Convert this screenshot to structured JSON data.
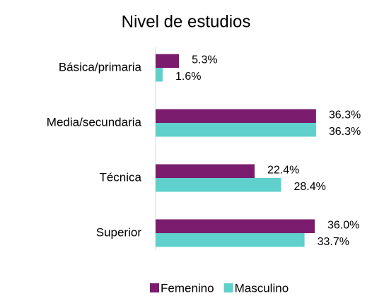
{
  "chart_data": {
    "type": "bar",
    "orientation": "horizontal",
    "title": "Nivel de estudios",
    "categories": [
      "Básica/primaria",
      "Media/secundaria",
      "Técnica",
      "Superior"
    ],
    "series": [
      {
        "name": "Femenino",
        "color": "#7b1c6e",
        "values": [
          5.3,
          36.3,
          22.4,
          36.0
        ],
        "value_labels": [
          "5.3%",
          "36.3%",
          "22.4%",
          "36.0%"
        ]
      },
      {
        "name": "Masculino",
        "color": "#5fd0cc",
        "values": [
          1.6,
          36.3,
          28.4,
          33.7
        ],
        "value_labels": [
          "1.6%",
          "36.3%",
          "28.4%",
          "33.7%"
        ]
      }
    ],
    "legend": "bottom"
  }
}
